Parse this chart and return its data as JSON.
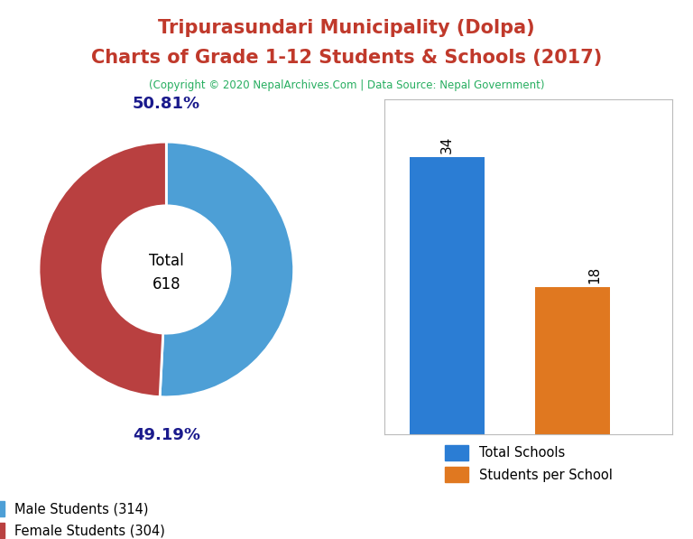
{
  "title_line1": "Tripurasundari Municipality (Dolpa)",
  "title_line2": "Charts of Grade 1-12 Students & Schools (2017)",
  "subtitle": "(Copyright © 2020 NepalArchives.Com | Data Source: Nepal Government)",
  "title_color": "#c0392b",
  "subtitle_color": "#27ae60",
  "donut_values": [
    314,
    304
  ],
  "donut_labels": [
    "50.81%",
    "49.19%"
  ],
  "donut_colors": [
    "#4d9fd6",
    "#b94040"
  ],
  "donut_total_line1": "Total",
  "donut_total_line2": "618",
  "legend_donut": [
    "Male Students (314)",
    "Female Students (304)"
  ],
  "bar_values": [
    34,
    18
  ],
  "bar_colors": [
    "#2b7dd4",
    "#e07820"
  ],
  "bar_labels": [
    "34",
    "18"
  ],
  "legend_bar": [
    "Total Schools",
    "Students per School"
  ],
  "label_pct_color": "#1a1a8c",
  "background_color": "#ffffff"
}
